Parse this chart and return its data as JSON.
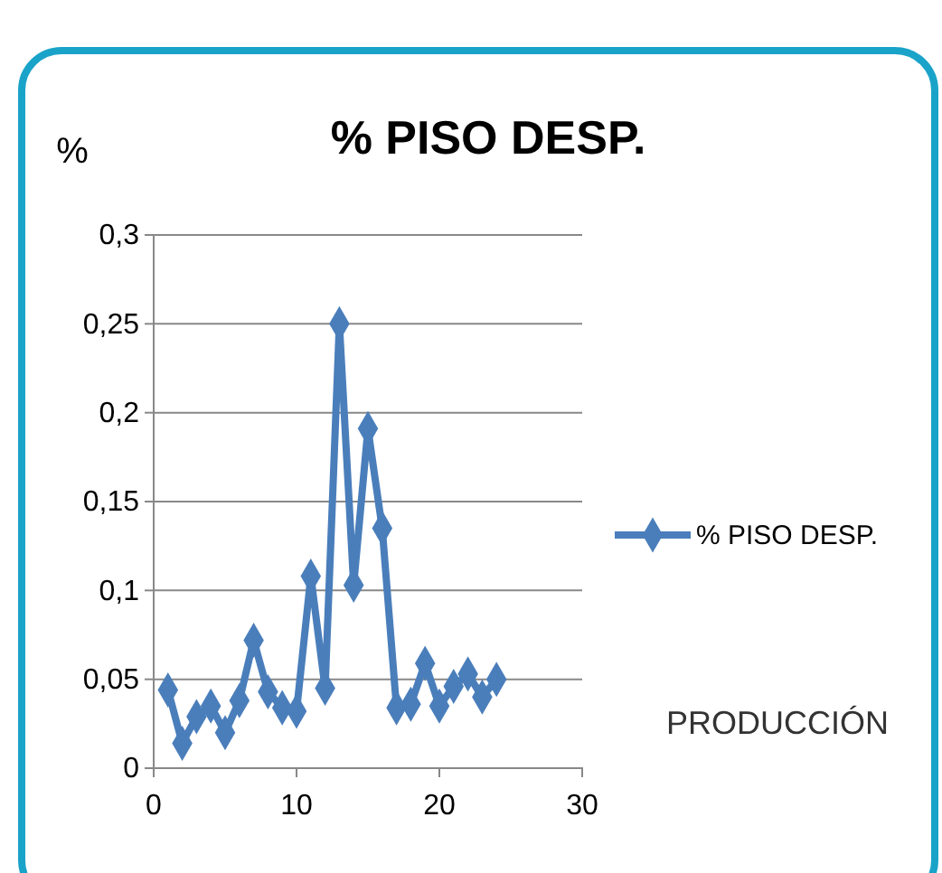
{
  "chart_data": {
    "type": "line",
    "title": "% PISO DESP.",
    "ylabel": "%",
    "xlabel": "PRODUCCIÓN",
    "x": [
      1,
      2,
      3,
      4,
      5,
      6,
      7,
      8,
      9,
      10,
      11,
      12,
      13,
      14,
      15,
      16,
      17,
      18,
      19,
      20,
      21,
      22,
      23,
      24
    ],
    "series": [
      {
        "name": "% PISO DESP.",
        "color": "#4a7ebb",
        "values": [
          0.044,
          0.014,
          0.029,
          0.035,
          0.02,
          0.038,
          0.072,
          0.043,
          0.034,
          0.032,
          0.108,
          0.045,
          0.25,
          0.103,
          0.191,
          0.135,
          0.034,
          0.036,
          0.059,
          0.035,
          0.046,
          0.053,
          0.04,
          0.05
        ]
      }
    ],
    "xlim": [
      0,
      30
    ],
    "xticks": [
      0,
      10,
      20,
      30
    ],
    "ylim": [
      0,
      0.3
    ],
    "yticks": [
      0,
      {
        "value": 0.05,
        "label": "0,05"
      },
      {
        "value": 0.1,
        "label": "0,1"
      },
      {
        "value": 0.15,
        "label": "0,15"
      },
      {
        "value": 0.2,
        "label": "0,2"
      },
      {
        "value": 0.25,
        "label": "0,25"
      },
      {
        "value": 0.3,
        "label": "0,3"
      }
    ],
    "grid": "y",
    "legend": "right",
    "marker": "diamond",
    "line_style": "solid"
  }
}
